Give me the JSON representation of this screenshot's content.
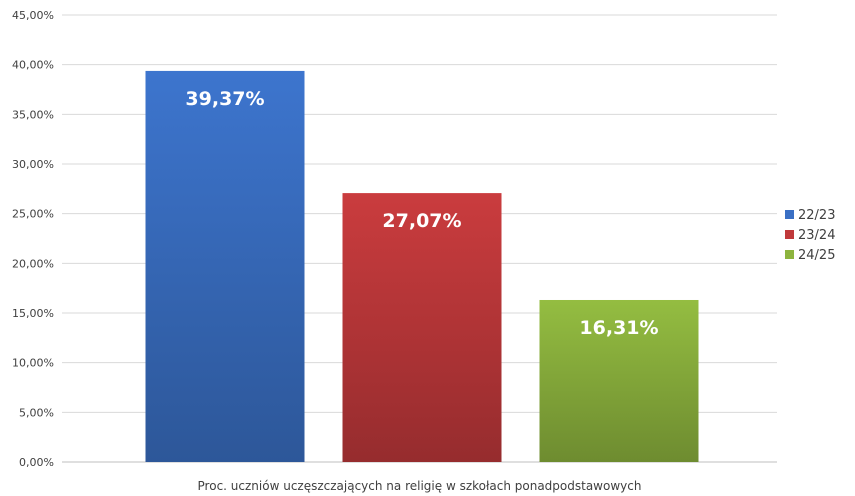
{
  "chart_data": {
    "type": "bar",
    "categories": [
      ""
    ],
    "series": [
      {
        "name": "22/23",
        "values": [
          39.37
        ],
        "label": "39,37%",
        "color": "#3a6fc4"
      },
      {
        "name": "23/24",
        "values": [
          27.07
        ],
        "label": "27,07%",
        "color": "#c0393b"
      },
      {
        "name": "24/25",
        "values": [
          16.31
        ],
        "label": "16,31%",
        "color": "#8db43e"
      }
    ],
    "title": "",
    "xlabel": "Proc. uczniów uczęszczających na religię w szkołach ponadpodstawowych",
    "ylabel": "",
    "ylim": [
      0,
      45
    ],
    "yticks": [
      {
        "value": 0,
        "label": "0,00%"
      },
      {
        "value": 5,
        "label": "5,00%"
      },
      {
        "value": 10,
        "label": "10,00%"
      },
      {
        "value": 15,
        "label": "15,00%"
      },
      {
        "value": 20,
        "label": "20,00%"
      },
      {
        "value": 25,
        "label": "25,00%"
      },
      {
        "value": 30,
        "label": "30,00%"
      },
      {
        "value": 35,
        "label": "35,00%"
      },
      {
        "value": 40,
        "label": "40,00%"
      },
      {
        "value": 45,
        "label": "45,00%"
      }
    ],
    "grid": true,
    "legend_position": "right"
  }
}
